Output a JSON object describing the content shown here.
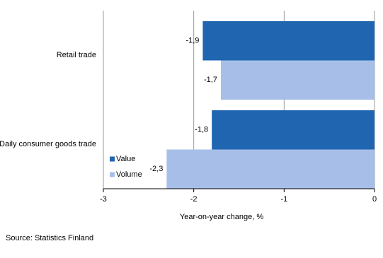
{
  "chart_data": {
    "type": "hbar",
    "categories": [
      "Retail trade",
      "Daily consumer goods trade"
    ],
    "series": [
      {
        "name": "Value",
        "color": "#1f65b0",
        "values": [
          -1.9,
          -1.8
        ],
        "value_labels": [
          "-1,9",
          "-1,8"
        ]
      },
      {
        "name": "Volume",
        "color": "#a7bfe8",
        "values": [
          -1.7,
          -2.3
        ],
        "value_labels": [
          "-1,7",
          "-2,3"
        ]
      }
    ],
    "xlim": [
      -3,
      0
    ],
    "xticks": [
      -3,
      -2,
      -1,
      0
    ],
    "grid": true,
    "xlabel": "Year-on-year change, %",
    "legend": "lower left",
    "source": "Source: Statistics Finland"
  }
}
